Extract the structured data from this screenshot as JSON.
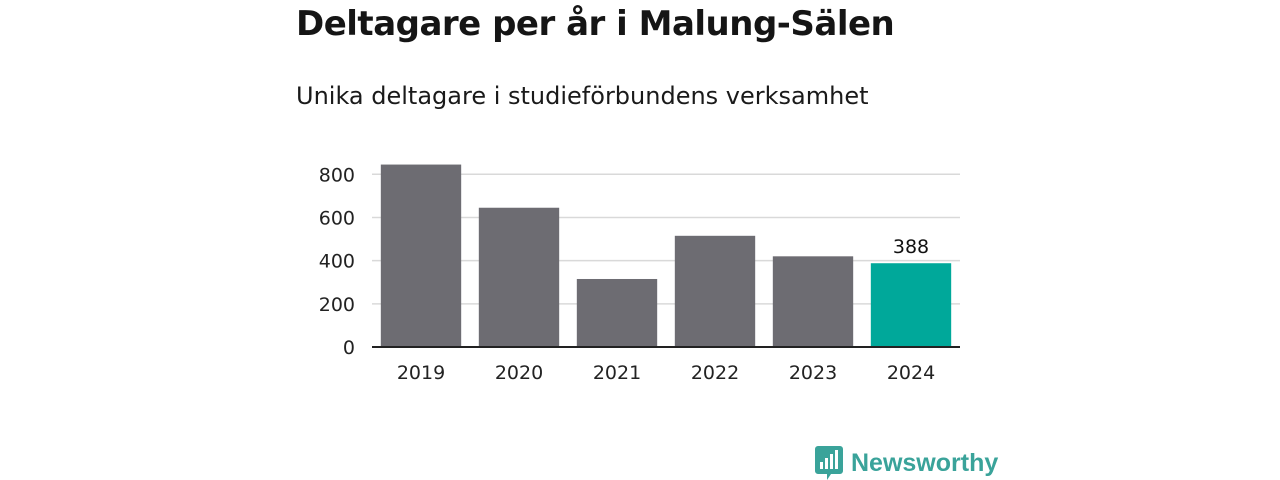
{
  "title": "Deltagare per år i Malung-Sälen",
  "subtitle": "Unika deltagare i studieförbundens verksamhet",
  "brand": {
    "name": "Newsworthy",
    "icon": "newsworthy-logo-icon",
    "color": "#3aa39a"
  },
  "chart_data": {
    "type": "bar",
    "categories": [
      "2019",
      "2020",
      "2021",
      "2022",
      "2023",
      "2024"
    ],
    "values": [
      845,
      645,
      315,
      515,
      420,
      388
    ],
    "yticks": [
      0,
      200,
      400,
      600,
      800
    ],
    "ylim": [
      0,
      880
    ],
    "grid": true,
    "bar_color": "#6d6c72",
    "highlight_color": "#00a89a",
    "highlight_index": 5,
    "data_labels": [
      {
        "index": 5,
        "text": "388"
      }
    ]
  }
}
